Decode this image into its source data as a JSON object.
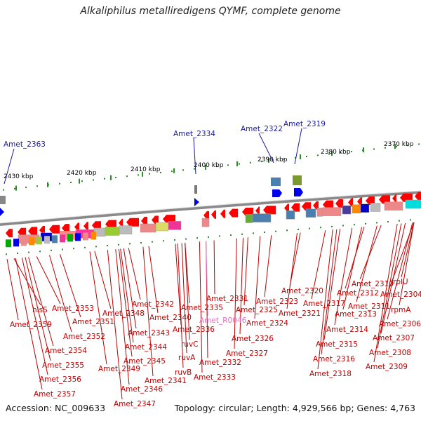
{
  "title": "Alkaliphilus metalliredigens QYMF, complete genome",
  "footer": {
    "accession": "Accession: NC_009633",
    "topology": "Topology: circular; Length: 4,929,566 bp; Genes: 4,763"
  },
  "colors": {
    "forward_label": "#1a1aa0",
    "reverse_label": "#c00000",
    "rna_label": "#e070c0",
    "reverse_arrow": "#ff0000",
    "forward_arrow": "#0000ee",
    "ruler_tick": "#2a8a2a"
  },
  "ruler": [
    {
      "label": "2430 kbp"
    },
    {
      "label": "2420 kbp"
    },
    {
      "label": "2410 kbp"
    },
    {
      "label": "2400 kbp"
    },
    {
      "label": "2390 kbp"
    },
    {
      "label": "2380 kbp"
    },
    {
      "label": "2370 kbp"
    }
  ],
  "forward_genes": [
    "Amet_2363",
    "Amet_2334",
    "Amet_2322",
    "Amet_2319"
  ],
  "reverse_genes": [
    "hisS",
    "Amet_2359",
    "Amet_2353",
    "Amet_2351",
    "Amet_2352",
    "Amet_2354",
    "Amet_2355",
    "Amet_2356",
    "Amet_2357",
    "Amet_2348",
    "Amet_2349",
    "Amet_2347",
    "Amet_2346",
    "Amet_2342",
    "Amet_2343",
    "Amet_2344",
    "Amet_2345",
    "Amet_2340",
    "Amet_2341",
    "Amet_2335",
    "Amet_2336",
    "ruvC",
    "ruvA",
    "ruvB",
    "Amet_2331",
    "Amet_2332",
    "Amet_2333",
    "Amet_2325",
    "Amet_2323",
    "Amet_2324",
    "Amet_2326",
    "Amet_2327",
    "Amet_2320",
    "Amet_2321",
    "Amet_2317",
    "Amet_2318",
    "Amet_2316",
    "Amet_2315",
    "Amet_2314",
    "Amet_2313",
    "Amet_2312",
    "Amet_2311",
    "Amet_2310",
    "rplU",
    "Amet_2304",
    "rpmA",
    "Amet_2306",
    "Amet_2307",
    "Amet_2308",
    "Amet_2309"
  ],
  "rna_genes": [
    "Amet_R0046"
  ]
}
